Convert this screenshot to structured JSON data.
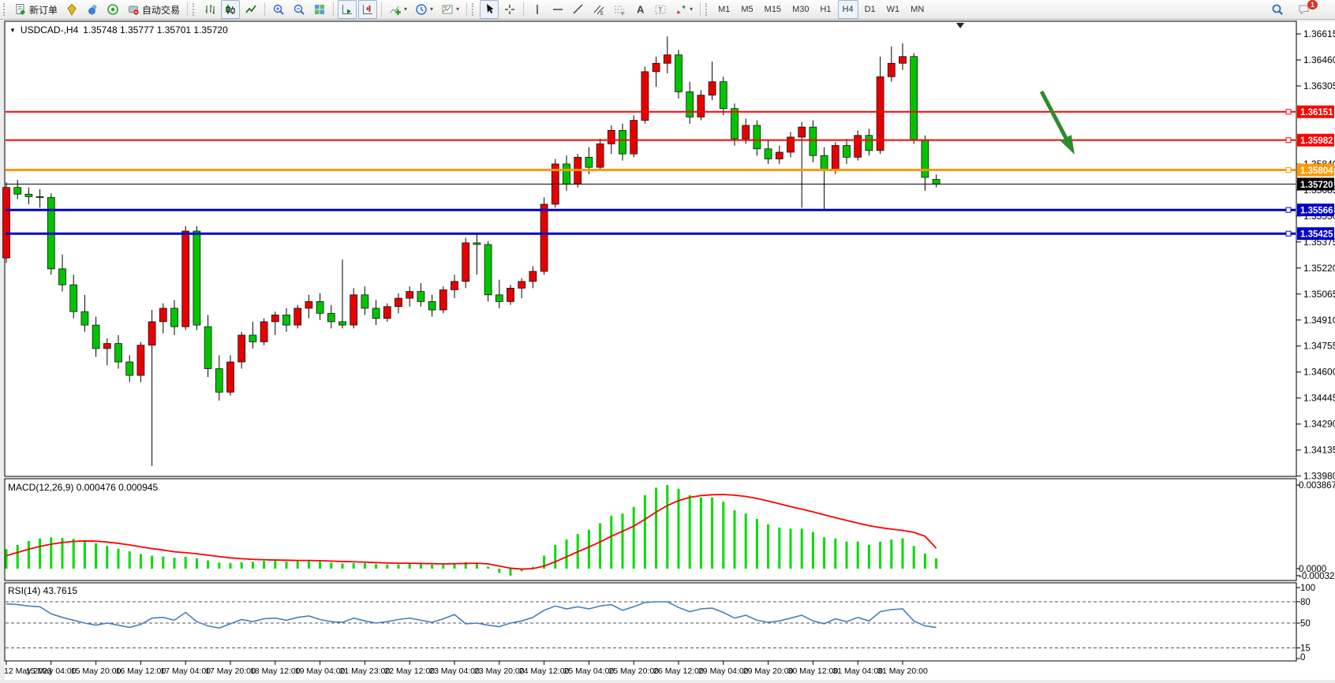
{
  "window": {
    "symbol_period": "USDCAD-,H4",
    "ohlc": "1.35748 1.35777 1.35701 1.35720"
  },
  "toolbar": {
    "groups": [
      {
        "name": "trade",
        "grip": true,
        "items": [
          {
            "id": "new-order",
            "icon": "new-order-icon",
            "label": "新订单"
          },
          {
            "id": "market-depth",
            "icon": "quotes-icon"
          },
          {
            "id": "community",
            "icon": "community-icon"
          },
          {
            "id": "signals",
            "icon": "signals-icon"
          },
          {
            "id": "autotrading",
            "icon": "autotrading-icon",
            "label": "自动交易"
          }
        ]
      },
      {
        "name": "chart-type",
        "grip": true,
        "items": [
          {
            "id": "bar-chart",
            "icon": "bar-chart-icon"
          },
          {
            "id": "candlestick-chart",
            "icon": "candlestick-icon",
            "active": true
          },
          {
            "id": "line-chart",
            "icon": "line-chart-icon"
          }
        ]
      },
      {
        "name": "zoom",
        "items": [
          {
            "id": "zoom-in",
            "icon": "zoom-in-icon"
          },
          {
            "id": "zoom-out",
            "icon": "zoom-out-icon"
          },
          {
            "id": "tile-windows",
            "icon": "tile-windows-icon"
          }
        ]
      },
      {
        "name": "scroll",
        "items": [
          {
            "id": "auto-scroll",
            "icon": "auto-scroll-icon",
            "active": true
          },
          {
            "id": "chart-shift",
            "icon": "chart-shift-icon",
            "active": true
          }
        ]
      },
      {
        "name": "insert",
        "items": [
          {
            "id": "indicators",
            "icon": "indicators-icon",
            "dropdown": true
          },
          {
            "id": "periods",
            "icon": "periods-icon",
            "dropdown": true
          },
          {
            "id": "templates",
            "icon": "templates-icon",
            "dropdown": true
          }
        ]
      },
      {
        "name": "pointer",
        "grip": true,
        "items": [
          {
            "id": "cursor",
            "icon": "cursor-icon",
            "active": true
          },
          {
            "id": "crosshair",
            "icon": "crosshair-icon"
          }
        ]
      },
      {
        "name": "objects",
        "items": [
          {
            "id": "vertical-line",
            "icon": "vertical-line-icon"
          },
          {
            "id": "horizontal-line",
            "icon": "horizontal-line-icon"
          },
          {
            "id": "trendline",
            "icon": "trendline-icon"
          },
          {
            "id": "equidistant-channel",
            "icon": "channel-icon"
          },
          {
            "id": "fibonacci",
            "icon": "fibonacci-icon"
          },
          {
            "id": "text",
            "icon": "text-icon"
          },
          {
            "id": "text-label",
            "icon": "label-icon"
          },
          {
            "id": "arrows",
            "icon": "arrows-icon",
            "dropdown": true
          }
        ]
      },
      {
        "name": "timeframes",
        "grip": true,
        "timeframe": true,
        "items": [
          {
            "id": "tf-m1",
            "label": "M1"
          },
          {
            "id": "tf-m5",
            "label": "M5"
          },
          {
            "id": "tf-m15",
            "label": "M15"
          },
          {
            "id": "tf-m30",
            "label": "M30"
          },
          {
            "id": "tf-h1",
            "label": "H1"
          },
          {
            "id": "tf-h4",
            "label": "H4",
            "active": true
          },
          {
            "id": "tf-d1",
            "label": "D1"
          },
          {
            "id": "tf-w1",
            "label": "W1"
          },
          {
            "id": "tf-mn",
            "label": "MN"
          }
        ]
      }
    ],
    "right_items": [
      {
        "id": "search",
        "icon": "search-icon"
      },
      {
        "id": "notifications",
        "icon": "chat-icon",
        "badge": "1"
      }
    ]
  },
  "chart_data": {
    "type": "candlestick",
    "title": "USDCAD-,H4  1.35748 1.35777 1.35701 1.35720",
    "colors": {
      "bull": "#e60000",
      "bear": "#00c400",
      "wick": "#000000",
      "resistance": "#ff0000",
      "pivot": "#ff9900",
      "support": "#0000cc",
      "price_line": "#000000",
      "macd_hist": "#00dd00",
      "macd_signal": "#ff0000",
      "rsi_line": "#4a7ebb",
      "arrow": "#2e8b2e"
    },
    "price_axis": {
      "ticks": [
        "1.36615",
        "1.36460",
        "1.36305",
        "1.35840",
        "1.35685",
        "1.35530",
        "1.35375",
        "1.35220",
        "1.35065",
        "1.34910",
        "1.34755",
        "1.34600",
        "1.34445",
        "1.34290",
        "1.34135",
        "1.33980"
      ]
    },
    "hlines": [
      {
        "name": "resistance-line-upper",
        "price": 1.36151,
        "label": "1.36151",
        "color": "#ff0000",
        "width": 2
      },
      {
        "name": "resistance-line-lower",
        "price": 1.35982,
        "label": "1.35982",
        "color": "#ff0000",
        "width": 2
      },
      {
        "name": "pivot-line",
        "price": 1.35804,
        "label": "1.35804",
        "color": "#ff9900",
        "width": 3
      },
      {
        "name": "current-price-line",
        "price": 1.3572,
        "label": "1.35720",
        "color": "#000000",
        "width": 1,
        "no_marker": true
      },
      {
        "name": "support-line-upper",
        "price": 1.35566,
        "label": "1.35566",
        "color": "#0000cc",
        "width": 3
      },
      {
        "name": "support-line-lower",
        "price": 1.35425,
        "label": "1.35425",
        "color": "#0000cc",
        "width": 3
      }
    ],
    "time_axis": {
      "labels": [
        "12 May 2023",
        "15 May 04:00",
        "15 May 20:00",
        "16 May 12:00",
        "17 May 04:00",
        "17 May 20:00",
        "18 May 12:00",
        "19 May 04:00",
        "21 May 23:00",
        "22 May 12:00",
        "23 May 04:00",
        "23 May 20:00",
        "24 May 12:00",
        "25 May 04:00",
        "25 May 20:00",
        "26 May 12:00",
        "29 May 04:00",
        "29 May 20:00",
        "30 May 12:00",
        "31 May 04:00",
        "31 May 20:00"
      ]
    },
    "candles": [
      [
        1.3528,
        1.3573,
        1.3525,
        1.357
      ],
      [
        1.357,
        1.35745,
        1.3563,
        1.3566
      ],
      [
        1.3566,
        1.357,
        1.356,
        1.35645
      ],
      [
        1.35645,
        1.3569,
        1.3558,
        1.3564
      ],
      [
        1.3564,
        1.35665,
        1.3518,
        1.35215
      ],
      [
        1.35215,
        1.353,
        1.3508,
        1.3512
      ],
      [
        1.3512,
        1.3518,
        1.3492,
        1.3496
      ],
      [
        1.3496,
        1.3506,
        1.3484,
        1.3488
      ],
      [
        1.3488,
        1.3493,
        1.3469,
        1.3474
      ],
      [
        1.3474,
        1.348,
        1.3464,
        1.3477
      ],
      [
        1.3477,
        1.3482,
        1.3462,
        1.3466
      ],
      [
        1.3466,
        1.347,
        1.3454,
        1.3458
      ],
      [
        1.3458,
        1.3478,
        1.3454,
        1.3476
      ],
      [
        1.3476,
        1.3497,
        1.3404,
        1.349
      ],
      [
        1.349,
        1.3501,
        1.3483,
        1.3498
      ],
      [
        1.3498,
        1.3503,
        1.3482,
        1.3487
      ],
      [
        1.3487,
        1.3547,
        1.3485,
        1.3544
      ],
      [
        1.3544,
        1.3547,
        1.3485,
        1.3488
      ],
      [
        1.3487,
        1.3494,
        1.3457,
        1.3462
      ],
      [
        1.3462,
        1.347,
        1.3443,
        1.3448
      ],
      [
        1.3448,
        1.347,
        1.3446,
        1.3466
      ],
      [
        1.3466,
        1.3484,
        1.3462,
        1.3482
      ],
      [
        1.3482,
        1.349,
        1.3474,
        1.3478
      ],
      [
        1.3478,
        1.3492,
        1.3476,
        1.349
      ],
      [
        1.349,
        1.3496,
        1.3482,
        1.3494
      ],
      [
        1.3494,
        1.3498,
        1.3484,
        1.3488
      ],
      [
        1.3488,
        1.35,
        1.3486,
        1.3498
      ],
      [
        1.3498,
        1.3506,
        1.3492,
        1.3502
      ],
      [
        1.3502,
        1.3507,
        1.3491,
        1.3495
      ],
      [
        1.3495,
        1.35,
        1.3486,
        1.349
      ],
      [
        1.349,
        1.3527,
        1.3486,
        1.3488
      ],
      [
        1.3488,
        1.351,
        1.3486,
        1.3506
      ],
      [
        1.3506,
        1.3511,
        1.3494,
        1.3498
      ],
      [
        1.3498,
        1.3503,
        1.3488,
        1.3492
      ],
      [
        1.3492,
        1.3501,
        1.349,
        1.3499
      ],
      [
        1.3499,
        1.3507,
        1.3495,
        1.3504
      ],
      [
        1.3504,
        1.3511,
        1.3499,
        1.3508
      ],
      [
        1.3508,
        1.3513,
        1.3499,
        1.3502
      ],
      [
        1.3502,
        1.3506,
        1.3493,
        1.3497
      ],
      [
        1.3497,
        1.3511,
        1.3495,
        1.3509
      ],
      [
        1.3509,
        1.3518,
        1.3504,
        1.3514
      ],
      [
        1.3514,
        1.354,
        1.351,
        1.3537
      ],
      [
        1.3537,
        1.3542,
        1.3518,
        1.3536
      ],
      [
        1.3536,
        1.3538,
        1.3502,
        1.3506
      ],
      [
        1.3506,
        1.3515,
        1.3498,
        1.3502
      ],
      [
        1.3502,
        1.3512,
        1.35,
        1.351
      ],
      [
        1.351,
        1.3516,
        1.3504,
        1.3514
      ],
      [
        1.3514,
        1.3523,
        1.351,
        1.352
      ],
      [
        1.352,
        1.3564,
        1.3518,
        1.356
      ],
      [
        1.356,
        1.3587,
        1.3558,
        1.3584
      ],
      [
        1.3584,
        1.3589,
        1.3568,
        1.3572
      ],
      [
        1.3572,
        1.359,
        1.357,
        1.3588
      ],
      [
        1.3588,
        1.3594,
        1.3578,
        1.3582
      ],
      [
        1.3582,
        1.3599,
        1.358,
        1.3596
      ],
      [
        1.3596,
        1.3607,
        1.359,
        1.3604
      ],
      [
        1.3604,
        1.3608,
        1.3586,
        1.359
      ],
      [
        1.359,
        1.3613,
        1.3588,
        1.361
      ],
      [
        1.361,
        1.3642,
        1.3608,
        1.3639
      ],
      [
        1.3639,
        1.3648,
        1.363,
        1.3644
      ],
      [
        1.3644,
        1.366,
        1.3638,
        1.3649
      ],
      [
        1.3649,
        1.3652,
        1.3623,
        1.3627
      ],
      [
        1.3627,
        1.3633,
        1.3608,
        1.3612
      ],
      [
        1.3612,
        1.3628,
        1.361,
        1.3625
      ],
      [
        1.3625,
        1.3645,
        1.3622,
        1.3633
      ],
      [
        1.3633,
        1.3636,
        1.3613,
        1.3617
      ],
      [
        1.3617,
        1.362,
        1.3595,
        1.3599
      ],
      [
        1.3599,
        1.3611,
        1.3596,
        1.3607
      ],
      [
        1.3607,
        1.361,
        1.3589,
        1.3593
      ],
      [
        1.3593,
        1.3598,
        1.3584,
        1.3587
      ],
      [
        1.3587,
        1.3595,
        1.3584,
        1.3591
      ],
      [
        1.3591,
        1.3603,
        1.3588,
        1.36
      ],
      [
        1.36,
        1.3609,
        1.3558,
        1.3606
      ],
      [
        1.3606,
        1.361,
        1.3585,
        1.3589
      ],
      [
        1.3589,
        1.3594,
        1.3557,
        1.358
      ],
      [
        1.358,
        1.3597,
        1.3578,
        1.3595
      ],
      [
        1.3595,
        1.3599,
        1.3584,
        1.3588
      ],
      [
        1.3588,
        1.3604,
        1.3586,
        1.3601
      ],
      [
        1.3601,
        1.3605,
        1.3589,
        1.3592
      ],
      [
        1.3592,
        1.3648,
        1.359,
        1.3636
      ],
      [
        1.3636,
        1.3654,
        1.3633,
        1.3644
      ],
      [
        1.3644,
        1.3656,
        1.364,
        1.3648
      ],
      [
        1.3648,
        1.365,
        1.3596,
        1.3598
      ],
      [
        1.3598,
        1.3601,
        1.3568,
        1.3576
      ],
      [
        1.35748,
        1.35777,
        1.35701,
        1.3572
      ]
    ],
    "macd": {
      "display": "MACD(12,26,9) 0.000476 0.000945",
      "axis_labels": [
        {
          "text": "0.003867",
          "value": 0.003867
        },
        {
          "text": "0.0000",
          "value": 0.0
        },
        {
          "text": "-0.000323",
          "value": -0.000323
        }
      ],
      "histogram": [
        0.0009,
        0.0011,
        0.00128,
        0.0014,
        0.00145,
        0.00142,
        0.00138,
        0.0013,
        0.00118,
        0.00105,
        0.00092,
        0.0008,
        0.00068,
        0.0006,
        0.00056,
        0.0005,
        0.00055,
        0.00048,
        0.00038,
        0.00028,
        0.00026,
        0.0003,
        0.00032,
        0.00035,
        0.00036,
        0.00033,
        0.00034,
        0.00036,
        0.00033,
        0.00028,
        0.00024,
        0.00026,
        0.00025,
        0.00021,
        0.00019,
        0.0002,
        0.00023,
        0.00022,
        0.00018,
        0.0002,
        0.00024,
        0.0003,
        0.00026,
        0.0001,
        -0.0002,
        -0.000323,
        -0.00012,
        8e-05,
        0.0006,
        0.0011,
        0.00135,
        0.0016,
        0.0018,
        0.0021,
        0.00245,
        0.00255,
        0.00285,
        0.0034,
        0.00375,
        0.003867,
        0.0037,
        0.0034,
        0.0033,
        0.0033,
        0.0031,
        0.0027,
        0.00255,
        0.0023,
        0.00205,
        0.0019,
        0.00185,
        0.00185,
        0.0017,
        0.00145,
        0.0014,
        0.00125,
        0.00125,
        0.0011,
        0.00125,
        0.00135,
        0.0014,
        0.00105,
        0.0007,
        0.000476
      ],
      "signal": [
        0.0006,
        0.00075,
        0.0009,
        0.00103,
        0.00113,
        0.00121,
        0.00126,
        0.00128,
        0.00127,
        0.00123,
        0.00117,
        0.0011,
        0.00101,
        0.00093,
        0.00086,
        0.00078,
        0.00074,
        0.00069,
        0.00062,
        0.00056,
        0.0005,
        0.00046,
        0.00043,
        0.00041,
        0.0004,
        0.00039,
        0.00038,
        0.00038,
        0.00037,
        0.00035,
        0.00033,
        0.00032,
        0.0003,
        0.00028,
        0.00026,
        0.00025,
        0.00025,
        0.00024,
        0.00023,
        0.00022,
        0.00023,
        0.00024,
        0.00025,
        0.00022,
        0.00012,
        2e-05,
        -2e-05,
        0.0,
        0.00012,
        0.00032,
        0.00055,
        0.00078,
        0.001,
        0.00124,
        0.0015,
        0.00173,
        0.00197,
        0.00228,
        0.00262,
        0.00292,
        0.00315,
        0.0033,
        0.00338,
        0.00342,
        0.00343,
        0.0034,
        0.00334,
        0.00325,
        0.00313,
        0.003,
        0.00287,
        0.00275,
        0.00263,
        0.00249,
        0.00236,
        0.00223,
        0.00211,
        0.00199,
        0.0019,
        0.00183,
        0.00177,
        0.00168,
        0.0015,
        0.000945
      ]
    },
    "rsi": {
      "display": "RSI(14) 43.7615",
      "levels": [
        80,
        50,
        15
      ],
      "axis_labels": [
        {
          "text": "100",
          "value": 100
        },
        {
          "text": "80",
          "value": 80
        },
        {
          "text": "50",
          "value": 50
        },
        {
          "text": "15",
          "value": 15
        },
        {
          "text": "0",
          "value": 0
        }
      ],
      "series": [
        77,
        76,
        74,
        73,
        63,
        58,
        54,
        50,
        47,
        50,
        47,
        44,
        48,
        57,
        58,
        54,
        65,
        52,
        46,
        43,
        49,
        55,
        52,
        56,
        57,
        54,
        58,
        60,
        55,
        52,
        51,
        57,
        53,
        50,
        52,
        55,
        57,
        54,
        51,
        56,
        62,
        49,
        50,
        47,
        45,
        50,
        53,
        58,
        68,
        74,
        70,
        73,
        70,
        74,
        76,
        68,
        73,
        79,
        80,
        80,
        72,
        66,
        70,
        71,
        65,
        57,
        61,
        54,
        51,
        53,
        57,
        61,
        53,
        49,
        56,
        52,
        58,
        53,
        66,
        69,
        70,
        53,
        46,
        43.8
      ]
    },
    "annotation_arrow": {
      "from": [
        1320,
        116
      ],
      "to": [
        1362,
        196
      ],
      "color": "#2e8b2e"
    }
  }
}
